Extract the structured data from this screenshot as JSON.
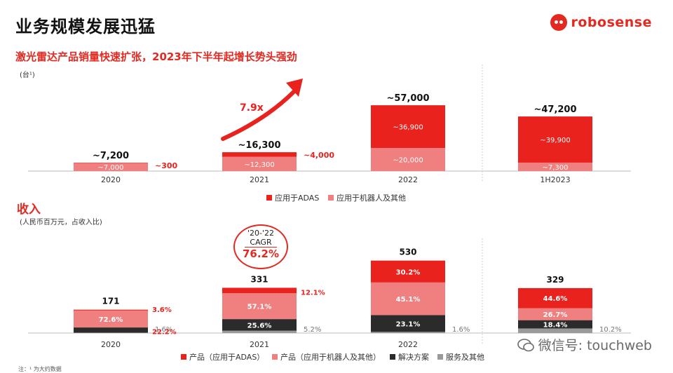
{
  "header": {
    "title": "业务规模发展迅猛",
    "brand": "robosense",
    "subtitle": "激光雷达产品销量快速扩张，2023年下半年起增长势头强劲"
  },
  "colors": {
    "red": "#e9221d",
    "pink": "#f08080",
    "dark": "#2b2b2b",
    "gray": "#9a9a9a"
  },
  "chart_data": [
    {
      "type": "bar",
      "title": "激光雷达产品销量",
      "ylabel": "(台¹)",
      "categories": [
        "2020",
        "2021",
        "2022",
        "1H2023"
      ],
      "totals": [
        "~7,200",
        "~16,300",
        "~57,000",
        "~47,200"
      ],
      "series": [
        {
          "name": "应用于机器人及其他",
          "values": [
            7000,
            12300,
            20000,
            7300
          ],
          "labels": [
            "~7,000",
            "~12,300",
            "~20,000",
            "~7,300"
          ]
        },
        {
          "name": "应用于ADAS",
          "values": [
            300,
            4000,
            36900,
            39900
          ],
          "labels": [
            "~300",
            "~4,000",
            "~36,900",
            "~39,900"
          ]
        }
      ],
      "annotation": "7.9x",
      "legend": [
        "应用于ADAS",
        "应用于机器人及其他"
      ]
    },
    {
      "type": "bar",
      "title": "收入",
      "ylabel": "(人民币百万元，占收入比)",
      "categories": [
        "2020",
        "2021",
        "2022",
        "1H2023"
      ],
      "category_labels": [
        "2020",
        "2021",
        "2022"
      ],
      "totals": [
        "171",
        "331",
        "530",
        "329"
      ],
      "total_values": [
        171,
        331,
        530,
        329
      ],
      "series": [
        {
          "name": "服务及其他",
          "values": [
            1.6,
            5.2,
            1.6,
            10.2
          ],
          "labels": [
            "1.6%",
            "5.2%",
            "1.6%",
            "10.2%"
          ]
        },
        {
          "name": "解决方案",
          "values": [
            22.2,
            25.6,
            23.1,
            18.4
          ],
          "labels": [
            "22.2%",
            "25.6%",
            "23.1%",
            "18.4%"
          ]
        },
        {
          "name": "产品（应用于机器人及其他）",
          "values": [
            72.6,
            57.1,
            45.1,
            26.7
          ],
          "labels": [
            "72.6%",
            "57.1%",
            "45.1%",
            "26.7%"
          ]
        },
        {
          "name": "产品（应用于ADAS）",
          "values": [
            3.6,
            12.1,
            30.2,
            44.6
          ],
          "labels": [
            "3.6%",
            "12.1%",
            "30.2%",
            "44.6%"
          ]
        }
      ],
      "cagr": {
        "line1": "'20-'22",
        "line2": "CAGR",
        "value": "76.2%"
      },
      "legend": [
        "产品（应用于ADAS）",
        "产品（应用于机器人及其他）",
        "解决方案",
        "服务及其他"
      ]
    }
  ],
  "footnote": "注：¹ 为大约数据",
  "watermark": "微信号: touchweb"
}
